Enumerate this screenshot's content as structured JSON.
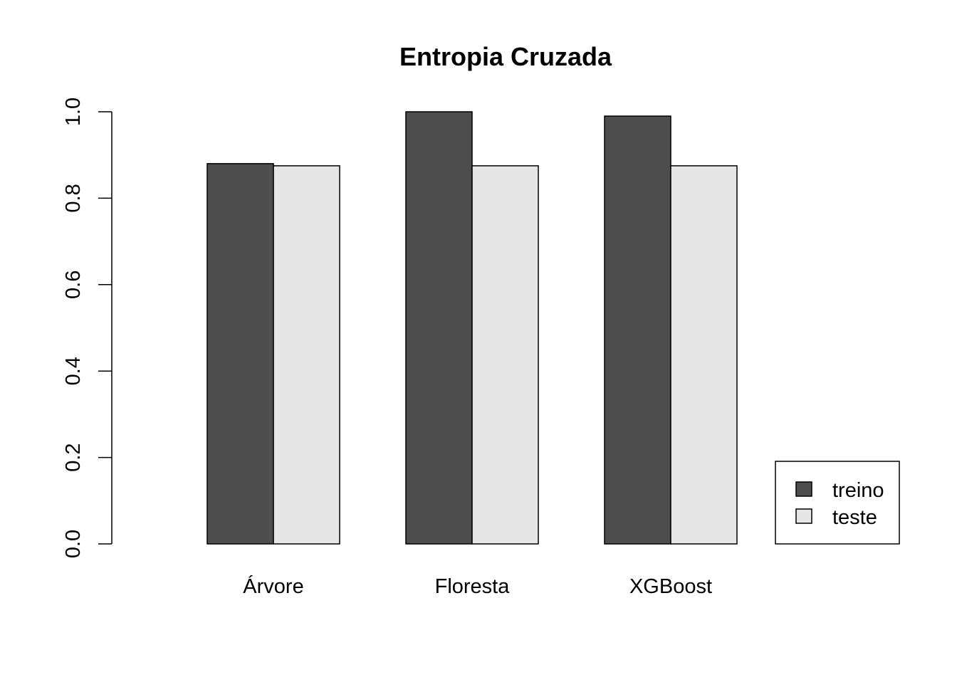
{
  "chart_data": {
    "type": "bar",
    "title": "Entropia Cruzada",
    "xlabel": "",
    "ylabel": "",
    "categories": [
      "Árvore",
      "Floresta",
      "XGBoost"
    ],
    "series": [
      {
        "name": "treino",
        "values": [
          0.88,
          1.0,
          0.99
        ],
        "color": "#4d4d4d"
      },
      {
        "name": "teste",
        "values": [
          0.875,
          0.875,
          0.875
        ],
        "color": "#e6e6e6"
      }
    ],
    "ylim": [
      0,
      1.0
    ],
    "yticks": [
      "0.0",
      "0.2",
      "0.4",
      "0.6",
      "0.8",
      "1.0"
    ],
    "grid": false,
    "legend_position": "bottom-right",
    "bar_border_color": "#000000"
  }
}
